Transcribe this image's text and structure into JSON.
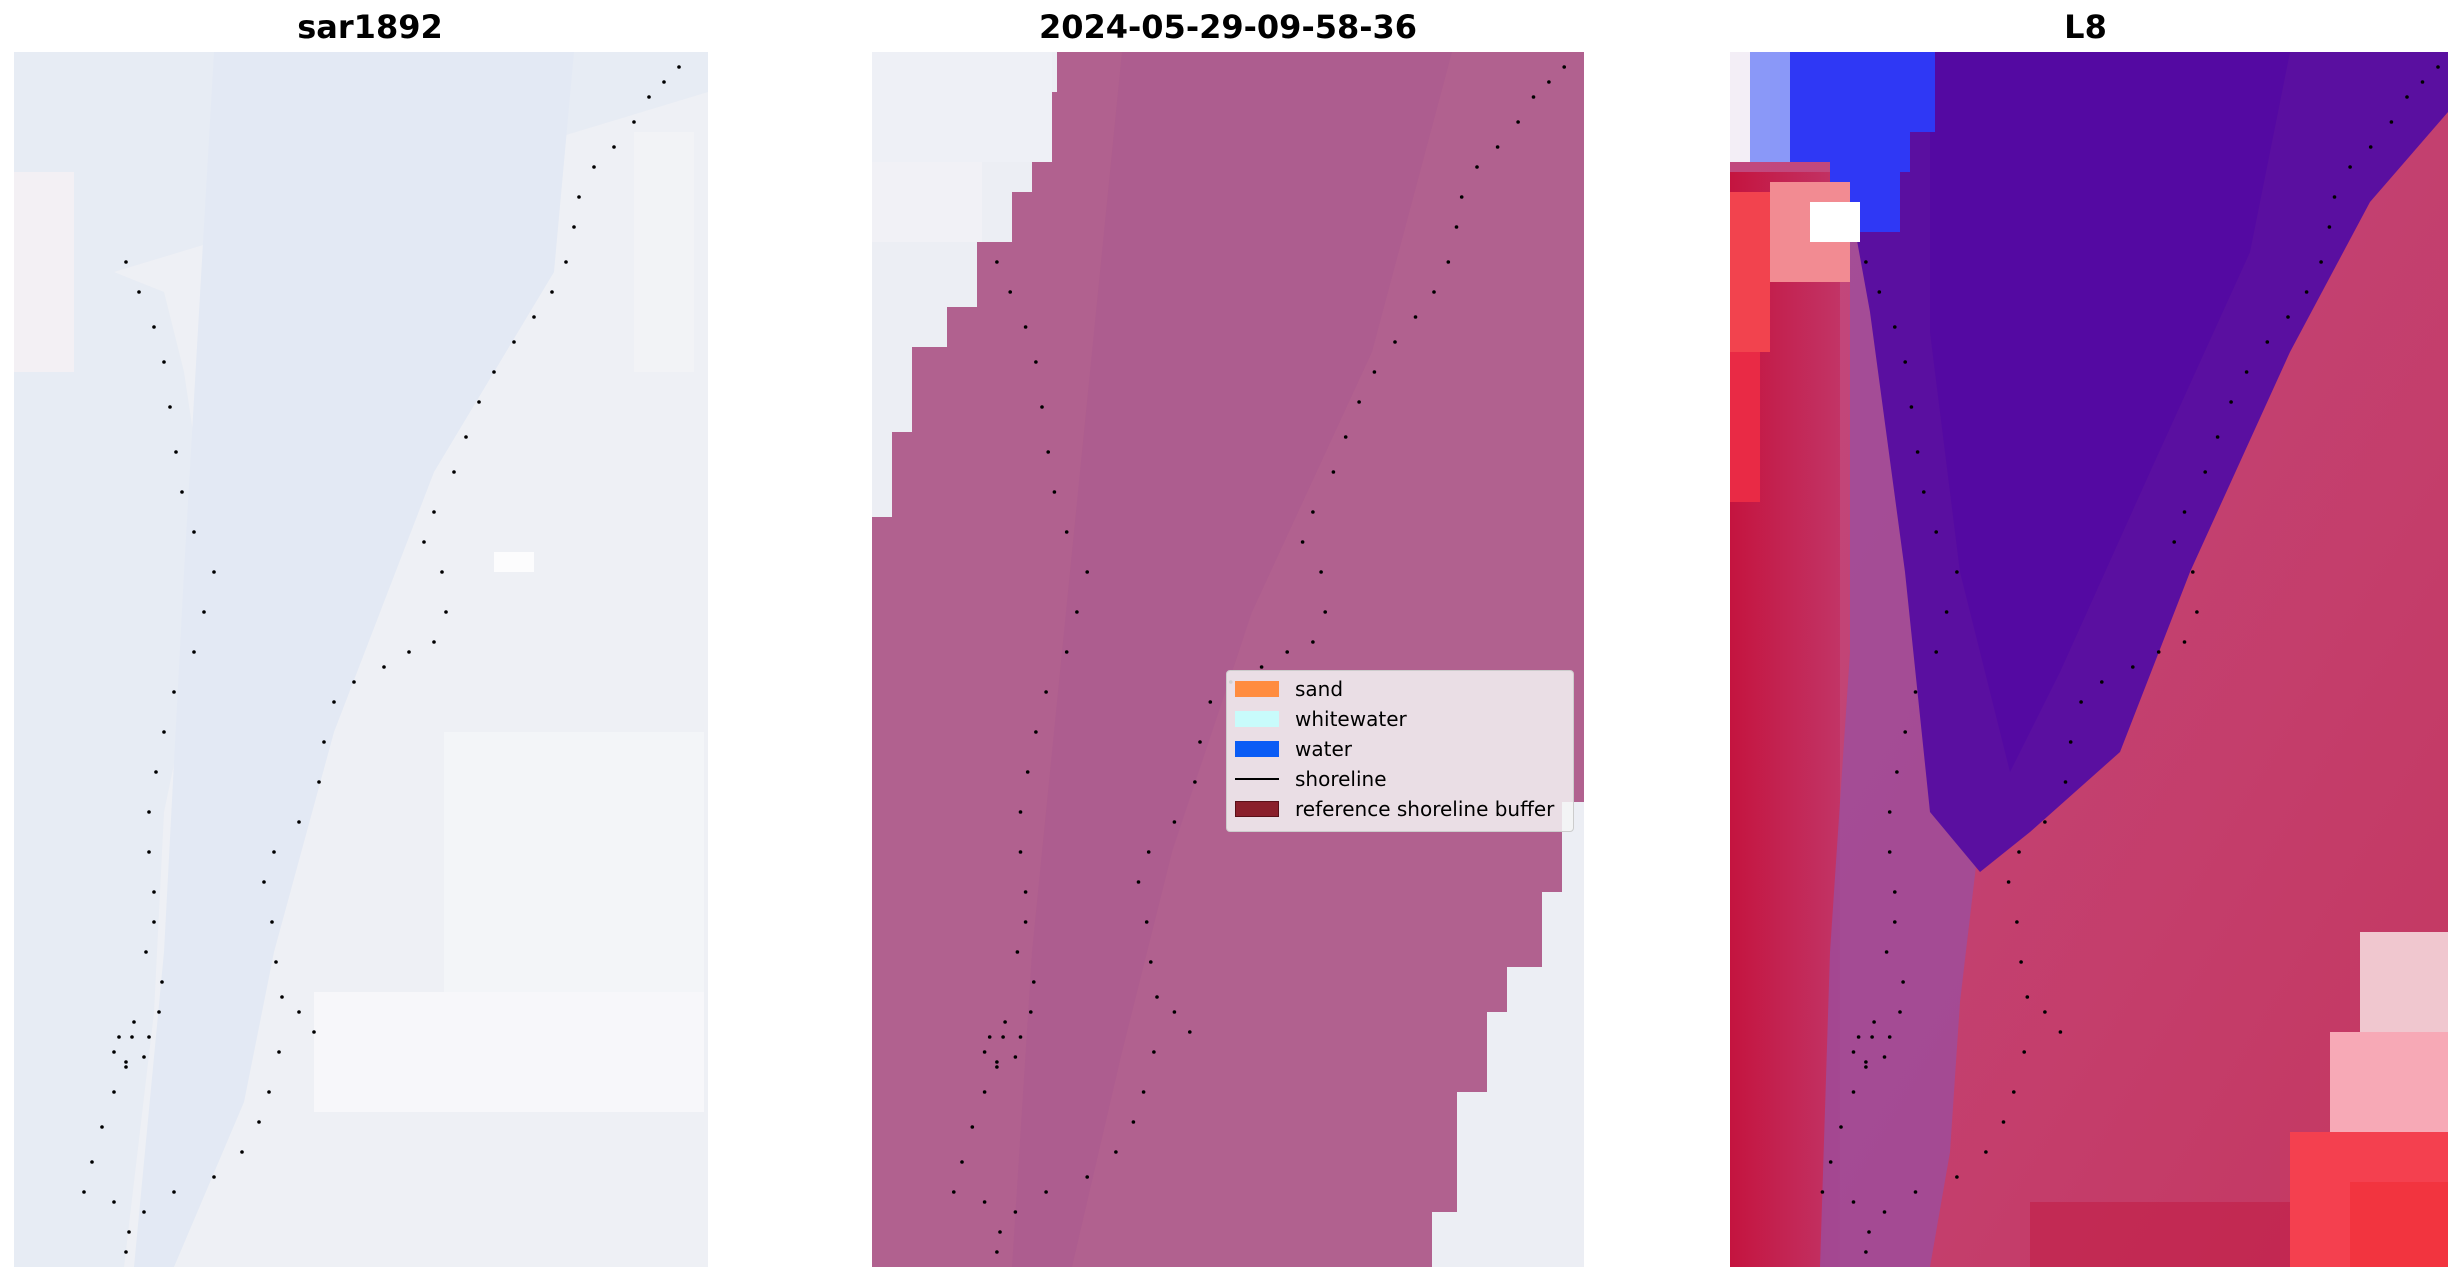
{
  "panels": [
    {
      "title": "sar1892"
    },
    {
      "title": "2024-05-29-09-58-36"
    },
    {
      "title": "L8"
    }
  ],
  "legend": {
    "items": [
      {
        "label": "sand",
        "color": "#ff8c3f",
        "kind": "patch"
      },
      {
        "label": "whitewater",
        "color": "#c8fbfb",
        "kind": "patch"
      },
      {
        "label": "water",
        "color": "#0a5cf5",
        "kind": "patch"
      },
      {
        "label": "shoreline",
        "color": "#000000",
        "kind": "line"
      },
      {
        "label": "reference shoreline buffer",
        "color": "#8a1f2b",
        "kind": "patch"
      }
    ]
  },
  "colors": {
    "background_light": "#eef0f6",
    "classified_fill": "#b1618f",
    "water_blue": "#2f38f5",
    "water_indigo": "#5a0fa0",
    "land_red": "#c0305c",
    "shoreline_points": "#000000"
  }
}
